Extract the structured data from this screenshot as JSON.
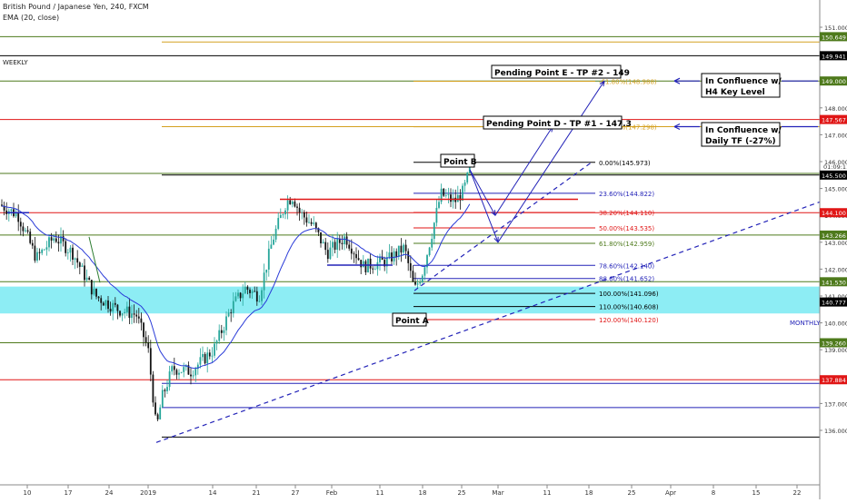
{
  "header": {
    "symbol": "British Pound / Japanese Yen, 240, FXCM",
    "indicator": "EMA (20, close)"
  },
  "labels": {
    "weekly": "WEEKLY",
    "monthly": "MONTHLY"
  },
  "annotations": {
    "point_a": "Point A",
    "point_b": "Point B",
    "pending_d": "Pending Point D - TP #1 - 147.3",
    "pending_e": "Pending Point E - TP #2 - 149",
    "confluence_h4_line1": "In Confluence w/",
    "confluence_h4_line2": "H4 Key Level",
    "confluence_daily_line1": "In Confluence w/",
    "confluence_daily_line2": "Daily TF (-27%)"
  },
  "colors": {
    "up_candle": "#26a69a",
    "down_candle": "#131313",
    "ema": "#2a3bd8",
    "green_level": "#4e7a1c",
    "red_level": "#e01616",
    "black_level": "#000000",
    "blue_level": "#2323b8",
    "orange_fib": "#d4a020",
    "zone_fill": "#5ce6f0"
  },
  "chart_data": {
    "type": "candlestick",
    "x_ticks": [
      "10",
      "17",
      "24",
      "2019",
      "14",
      "21",
      "27",
      "Feb",
      "11",
      "18",
      "25",
      "Mar",
      "11",
      "18",
      "25",
      "Apr",
      "8",
      "15",
      "22"
    ],
    "y_ticks": [
      "151.000",
      "150.000",
      "149.000",
      "148.000",
      "147.000",
      "146.000",
      "145.000",
      "144.000",
      "143.000",
      "142.000",
      "141.000",
      "140.000",
      "139.000",
      "138.000",
      "137.000",
      "136.000"
    ],
    "ylim": [
      135.1,
      151.35
    ],
    "price_labels": [
      {
        "value": 150.649,
        "text": "150.649",
        "color": "#4e7a1c"
      },
      {
        "value": 149.941,
        "text": "149.941",
        "color": "#000000"
      },
      {
        "value": 149.0,
        "text": "149.000",
        "color": "#4e7a1c"
      },
      {
        "value": 147.567,
        "text": "147.567",
        "color": "#e01616"
      },
      {
        "value": 145.559,
        "text": "145.559",
        "color": "none"
      },
      {
        "value": 145.5,
        "text": "145.500",
        "color": "#000000"
      },
      {
        "value": 144.1,
        "text": "144.100",
        "color": "#e01616"
      },
      {
        "value": 143.266,
        "text": "143.266",
        "color": "#4e7a1c"
      },
      {
        "value": 141.53,
        "text": "141.530",
        "color": "#4e7a1c"
      },
      {
        "value": 140.777,
        "text": "140.777",
        "color": "#000000"
      },
      {
        "value": 139.26,
        "text": "139.260",
        "color": "#4e7a1c"
      },
      {
        "value": 137.884,
        "text": "137.884",
        "color": "#e01616"
      }
    ],
    "countdown": "01:09:11",
    "horizontal_levels": [
      {
        "value": 150.649,
        "color": "#4e7a1c",
        "x_start": 0
      },
      {
        "value": 150.45,
        "color": "#d4a020",
        "x_start": 178
      },
      {
        "value": 149.941,
        "color": "#000000",
        "x_start": 0
      },
      {
        "value": 149.0,
        "color": "#4e7a1c",
        "x_start": 0
      },
      {
        "value": 147.567,
        "color": "#e01616",
        "x_start": 0
      },
      {
        "value": 147.3,
        "color": "#d4a020",
        "x_start": 178
      },
      {
        "value": 145.559,
        "color": "#4e7a1c",
        "x_start": 0
      },
      {
        "value": 145.5,
        "color": "#000000",
        "x_start": 178
      },
      {
        "value": 144.1,
        "color": "#e01616",
        "x_start": 0
      },
      {
        "value": 143.266,
        "color": "#4e7a1c",
        "x_start": 0
      },
      {
        "value": 141.53,
        "color": "#4e7a1c",
        "x_start": 0
      },
      {
        "value": 139.26,
        "color": "#4e7a1c",
        "x_start": 0
      },
      {
        "value": 137.884,
        "color": "#e01616",
        "x_start": 0
      },
      {
        "value": 137.75,
        "color": "#2323b8",
        "x_start": 178
      },
      {
        "value": 136.85,
        "color": "#2323b8",
        "x_start": 178
      },
      {
        "value": 135.75,
        "color": "#000000",
        "x_start": 178
      }
    ],
    "zone": {
      "top": 141.35,
      "bottom": 140.35,
      "color": "#5ce6f0"
    },
    "fib_levels": [
      {
        "value": 145.973,
        "text": "0.00%(145.973)",
        "color": "#000000"
      },
      {
        "value": 144.822,
        "text": "23.60%(144.822)",
        "color": "#2323b8"
      },
      {
        "value": 144.11,
        "text": "38.20%(144.110)",
        "color": "#e01616"
      },
      {
        "value": 143.535,
        "text": "50.00%(143.535)",
        "color": "#e01616"
      },
      {
        "value": 142.959,
        "text": "61.80%(142.959)",
        "color": "#4e7a1c"
      },
      {
        "value": 142.14,
        "text": "78.60%(142.140)",
        "color": "#2323b8"
      },
      {
        "value": 141.652,
        "text": "88.60%(141.652)",
        "color": "#2323b8"
      },
      {
        "value": 141.096,
        "text": "100.00%(141.096)",
        "color": "#000000"
      },
      {
        "value": 140.608,
        "text": "110.00%(140.608)",
        "color": "#000000"
      },
      {
        "value": 140.12,
        "text": "120.00%(140.120)",
        "color": "#e01616"
      },
      {
        "value": 147.298,
        "text": "-27.00%(147.298)",
        "color": "#d4a020"
      },
      {
        "value": 148.988,
        "text": "-61.80%(148.988)",
        "color": "#d4a020"
      }
    ]
  }
}
